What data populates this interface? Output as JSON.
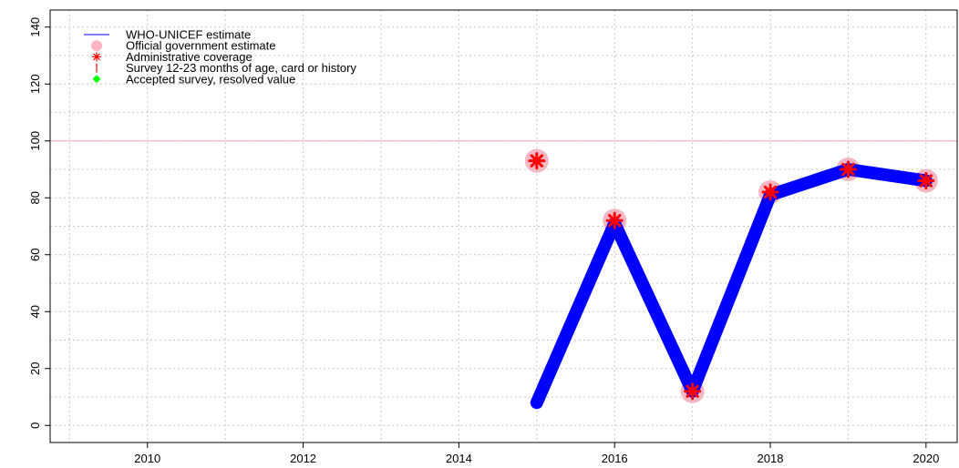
{
  "chart_data": {
    "type": "line",
    "title": "",
    "xlabel": "",
    "ylabel": "",
    "xlim": [
      2008.75,
      2020.4
    ],
    "ylim": [
      -6,
      146
    ],
    "x_ticks": [
      2010,
      2012,
      2014,
      2016,
      2018,
      2020
    ],
    "y_ticks": [
      0,
      20,
      40,
      60,
      80,
      100,
      120,
      140
    ],
    "grid": true,
    "reference_line": 100,
    "legend_position": "top-left",
    "legend": [
      {
        "label": "WHO-UNICEF estimate",
        "marker": "line",
        "color": "#0000ff"
      },
      {
        "label": "Official government estimate",
        "marker": "circle",
        "color": "#ffb6c1"
      },
      {
        "label": "Administrative coverage",
        "marker": "asterisk",
        "color": "#ff0000"
      },
      {
        "label": "Survey 12-23 months of age, card or history",
        "marker": "bar",
        "color": "#ff0000"
      },
      {
        "label": "Accepted survey, resolved value",
        "marker": "diamond",
        "color": "#00ff00"
      }
    ],
    "series": [
      {
        "name": "WHO-UNICEF estimate",
        "x": [
          2015,
          2016,
          2017,
          2018,
          2019,
          2020
        ],
        "values": [
          8,
          71,
          12,
          81,
          90,
          86
        ]
      },
      {
        "name": "Official government estimate",
        "x": [
          2015,
          2016,
          2017,
          2018,
          2019,
          2020
        ],
        "values": [
          93,
          72,
          12,
          82,
          90,
          86
        ]
      },
      {
        "name": "Administrative coverage",
        "x": [
          2015,
          2016,
          2017,
          2018,
          2019,
          2020
        ],
        "values": [
          93,
          72,
          12,
          82,
          90,
          86
        ]
      }
    ],
    "colors": {
      "estimate_line": "#0000ff",
      "official": "#f4b6c2",
      "admin": "#ff0000",
      "reference": "#f4b6c2",
      "grid": "#c8c8c8"
    }
  }
}
